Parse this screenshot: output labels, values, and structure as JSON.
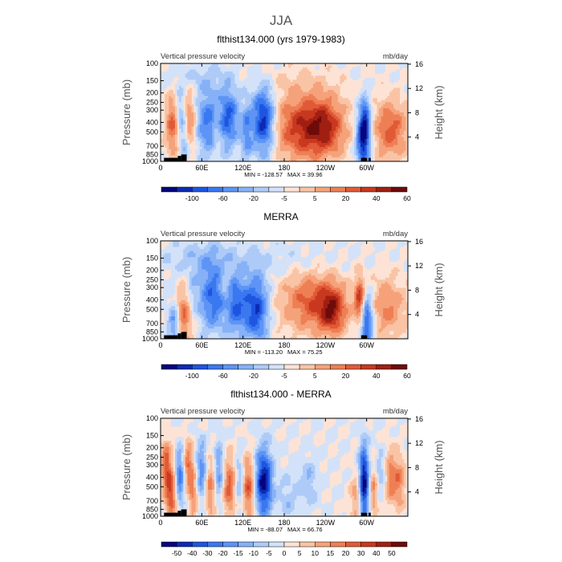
{
  "figure_title": "JJA",
  "chart_data": [
    {
      "type": "heatmap",
      "title": "flthist134.000 (yrs 1979-1983)",
      "left_string": "Vertical pressure velocity",
      "right_string": "mb/day",
      "ylabel": "Pressure (mb)",
      "ylabel_right": "Height (km)",
      "x_ticks": [
        "0",
        "60E",
        "120E",
        "180",
        "120W",
        "60W"
      ],
      "x_tick_values": [
        0,
        60,
        120,
        180,
        240,
        300
      ],
      "xlim": [
        0,
        360
      ],
      "y_ticks": [
        "100",
        "150",
        "200",
        "250",
        "300",
        "400",
        "500",
        "700",
        "850",
        "1000"
      ],
      "y_tick_values": [
        100,
        150,
        200,
        250,
        300,
        400,
        500,
        700,
        850,
        1000
      ],
      "ylim": [
        1000,
        100
      ],
      "y_scale": "log",
      "height_ticks": [
        "4",
        "8",
        "12",
        "16"
      ],
      "height_tick_values": [
        4,
        8,
        12,
        16
      ],
      "min_label": "MIN = -128.57",
      "max_label": "MAX =  39.96",
      "colorbar_labels": [
        "-100",
        "-60",
        "-20",
        "-5",
        "5",
        "20",
        "40",
        "60"
      ],
      "colorbar_colors": [
        "#06057d",
        "#0c2bb3",
        "#1e55e0",
        "#3a78f0",
        "#5d94f5",
        "#86b1f7",
        "#aecbf8",
        "#d3e2f9",
        "#fde3d5",
        "#f9c4a5",
        "#f5a27a",
        "#ee7f55",
        "#e15a37",
        "#c8381f",
        "#a01f13",
        "#6e0b0b"
      ],
      "features": [
        {
          "lon": 18,
          "p": 420,
          "w": 8,
          "h": 0.5,
          "v": 0.55
        },
        {
          "lon": 28,
          "p": 320,
          "w": 5,
          "h": 0.35,
          "v": -0.4
        },
        {
          "lon": 35,
          "p": 600,
          "w": 6,
          "h": 0.45,
          "v": -0.4
        },
        {
          "lon": 42,
          "p": 400,
          "w": 7,
          "h": 0.5,
          "v": 0.55
        },
        {
          "lon": 70,
          "p": 400,
          "w": 14,
          "h": 0.55,
          "v": -0.55
        },
        {
          "lon": 100,
          "p": 350,
          "w": 10,
          "h": 0.5,
          "v": -0.6
        },
        {
          "lon": 82,
          "p": 500,
          "w": 5,
          "h": 0.4,
          "v": 0.25
        },
        {
          "lon": 150,
          "p": 380,
          "w": 12,
          "h": 0.55,
          "v": -0.9
        },
        {
          "lon": 125,
          "p": 500,
          "w": 6,
          "h": 0.5,
          "v": -0.4
        },
        {
          "lon": 200,
          "p": 450,
          "w": 28,
          "h": 0.55,
          "v": 0.6
        },
        {
          "lon": 240,
          "p": 450,
          "w": 22,
          "h": 0.5,
          "v": 0.65
        },
        {
          "lon": 295,
          "p": 600,
          "w": 7,
          "h": 0.45,
          "v": -0.95
        },
        {
          "lon": 298,
          "p": 350,
          "w": 5,
          "h": 0.35,
          "v": -0.5
        },
        {
          "lon": 335,
          "p": 480,
          "w": 18,
          "h": 0.5,
          "v": 0.55
        },
        {
          "lon": 180,
          "p": 150,
          "w": 60,
          "h": 0.3,
          "v": 0.1
        },
        {
          "lon": 60,
          "p": 140,
          "w": 40,
          "h": 0.25,
          "v": -0.15
        }
      ],
      "topography": [
        [
          5,
          25,
          920
        ],
        [
          25,
          30,
          880
        ],
        [
          30,
          38,
          850
        ],
        [
          292,
          300,
          920
        ],
        [
          303,
          306,
          920
        ]
      ]
    },
    {
      "type": "heatmap",
      "title": "MERRA",
      "left_string": "Vertical pressure velocity",
      "right_string": "mb/day",
      "ylabel": "Pressure (mb)",
      "ylabel_right": "Height (km)",
      "x_ticks": [
        "0",
        "60E",
        "120E",
        "180",
        "120W",
        "60W"
      ],
      "x_tick_values": [
        0,
        60,
        120,
        180,
        240,
        300
      ],
      "xlim": [
        0,
        360
      ],
      "y_ticks": [
        "100",
        "150",
        "200",
        "250",
        "300",
        "400",
        "500",
        "700",
        "850",
        "1000"
      ],
      "y_tick_values": [
        100,
        150,
        200,
        250,
        300,
        400,
        500,
        700,
        850,
        1000
      ],
      "ylim": [
        1000,
        100
      ],
      "y_scale": "log",
      "height_ticks": [
        "4",
        "8",
        "12",
        "16"
      ],
      "height_tick_values": [
        4,
        8,
        12,
        16
      ],
      "min_label": "MIN = -113.20",
      "max_label": "MAX =  75.25",
      "colorbar_labels": [
        "-100",
        "-60",
        "-20",
        "-5",
        "5",
        "20",
        "40",
        "60"
      ],
      "colorbar_colors": [
        "#06057d",
        "#0c2bb3",
        "#1e55e0",
        "#3a78f0",
        "#5d94f5",
        "#86b1f7",
        "#aecbf8",
        "#d3e2f9",
        "#fde3d5",
        "#f9c4a5",
        "#f5a27a",
        "#ee7f55",
        "#e15a37",
        "#c8381f",
        "#a01f13",
        "#6e0b0b"
      ],
      "features": [
        {
          "lon": 20,
          "p": 700,
          "w": 6,
          "h": 0.4,
          "v": -0.5
        },
        {
          "lon": 35,
          "p": 550,
          "w": 10,
          "h": 0.45,
          "v": 0.55
        },
        {
          "lon": 45,
          "p": 400,
          "w": 6,
          "h": 0.4,
          "v": -0.3
        },
        {
          "lon": 75,
          "p": 380,
          "w": 14,
          "h": 0.55,
          "v": -0.6
        },
        {
          "lon": 110,
          "p": 450,
          "w": 12,
          "h": 0.5,
          "v": -0.6
        },
        {
          "lon": 140,
          "p": 500,
          "w": 12,
          "h": 0.55,
          "v": -0.75
        },
        {
          "lon": 95,
          "p": 300,
          "w": 5,
          "h": 0.4,
          "v": 0.2
        },
        {
          "lon": 220,
          "p": 420,
          "w": 32,
          "h": 0.5,
          "v": 0.55
        },
        {
          "lon": 250,
          "p": 520,
          "w": 14,
          "h": 0.4,
          "v": 0.6
        },
        {
          "lon": 290,
          "p": 400,
          "w": 5,
          "h": 0.4,
          "v": 0.7
        },
        {
          "lon": 300,
          "p": 650,
          "w": 7,
          "h": 0.45,
          "v": -0.8
        },
        {
          "lon": 330,
          "p": 480,
          "w": 20,
          "h": 0.5,
          "v": 0.4
        },
        {
          "lon": 170,
          "p": 160,
          "w": 60,
          "h": 0.3,
          "v": -0.1
        },
        {
          "lon": 60,
          "p": 150,
          "w": 40,
          "h": 0.3,
          "v": -0.2
        }
      ],
      "topography": [
        [
          5,
          25,
          920
        ],
        [
          25,
          30,
          880
        ],
        [
          30,
          38,
          850
        ],
        [
          292,
          300,
          920
        ]
      ]
    },
    {
      "type": "heatmap",
      "title": "flthist134.000 - MERRA",
      "left_string": "Vertical pressure velocity",
      "right_string": "mb/day",
      "ylabel": "Pressure (mb)",
      "ylabel_right": "Height (km)",
      "x_ticks": [
        "0",
        "60E",
        "120E",
        "180",
        "120W",
        "60W"
      ],
      "x_tick_values": [
        0,
        60,
        120,
        180,
        240,
        300
      ],
      "xlim": [
        0,
        360
      ],
      "y_ticks": [
        "100",
        "150",
        "200",
        "250",
        "300",
        "400",
        "500",
        "700",
        "850",
        "1000"
      ],
      "y_tick_values": [
        100,
        150,
        200,
        250,
        300,
        400,
        500,
        700,
        850,
        1000
      ],
      "ylim": [
        1000,
        100
      ],
      "y_scale": "log",
      "height_ticks": [
        "4",
        "8",
        "12",
        "16"
      ],
      "height_tick_values": [
        4,
        8,
        12,
        16
      ],
      "min_label": "MIN = -88.07",
      "max_label": "MAX =  66.76",
      "colorbar_labels": [
        "-50",
        "-40",
        "-30",
        "-20",
        "-15",
        "-10",
        "-5",
        "0",
        "5",
        "10",
        "15",
        "20",
        "30",
        "40",
        "50"
      ],
      "colorbar_colors": [
        "#06057d",
        "#0c2bb3",
        "#1e55e0",
        "#3a78f0",
        "#5d94f5",
        "#86b1f7",
        "#aecbf8",
        "#d3e2f9",
        "#fde3d5",
        "#f9c4a5",
        "#f5a27a",
        "#ee7f55",
        "#e15a37",
        "#c8381f",
        "#a01f13",
        "#6e0b0b"
      ],
      "features": [
        {
          "lon": 8,
          "p": 300,
          "w": 6,
          "h": 0.4,
          "v": 0.55
        },
        {
          "lon": 15,
          "p": 600,
          "w": 6,
          "h": 0.4,
          "v": 0.6
        },
        {
          "lon": 28,
          "p": 400,
          "w": 5,
          "h": 0.45,
          "v": -0.6
        },
        {
          "lon": 40,
          "p": 300,
          "w": 5,
          "h": 0.4,
          "v": 0.5
        },
        {
          "lon": 48,
          "p": 600,
          "w": 5,
          "h": 0.45,
          "v": 0.4
        },
        {
          "lon": 60,
          "p": 350,
          "w": 6,
          "h": 0.5,
          "v": -0.5
        },
        {
          "lon": 72,
          "p": 500,
          "w": 6,
          "h": 0.5,
          "v": 0.45
        },
        {
          "lon": 85,
          "p": 350,
          "w": 5,
          "h": 0.5,
          "v": -0.45
        },
        {
          "lon": 100,
          "p": 500,
          "w": 7,
          "h": 0.5,
          "v": 0.55
        },
        {
          "lon": 115,
          "p": 450,
          "w": 5,
          "h": 0.5,
          "v": -0.35
        },
        {
          "lon": 128,
          "p": 500,
          "w": 7,
          "h": 0.5,
          "v": 0.6
        },
        {
          "lon": 150,
          "p": 450,
          "w": 9,
          "h": 0.55,
          "v": -0.95
        },
        {
          "lon": 185,
          "p": 650,
          "w": 10,
          "h": 0.4,
          "v": -0.2
        },
        {
          "lon": 215,
          "p": 450,
          "w": 10,
          "h": 0.4,
          "v": -0.25
        },
        {
          "lon": 285,
          "p": 650,
          "w": 6,
          "h": 0.4,
          "v": 0.35
        },
        {
          "lon": 296,
          "p": 450,
          "w": 5,
          "h": 0.6,
          "v": -1.0
        },
        {
          "lon": 310,
          "p": 550,
          "w": 4,
          "h": 0.4,
          "v": 0.4
        },
        {
          "lon": 335,
          "p": 400,
          "w": 6,
          "h": 0.45,
          "v": 0.45
        },
        {
          "lon": 348,
          "p": 450,
          "w": 6,
          "h": 0.45,
          "v": 0.4
        },
        {
          "lon": 320,
          "p": 350,
          "w": 5,
          "h": 0.35,
          "v": -0.25
        }
      ],
      "topography": [
        [
          5,
          25,
          920
        ],
        [
          25,
          30,
          880
        ],
        [
          30,
          38,
          850
        ],
        [
          292,
          300,
          920
        ],
        [
          303,
          306,
          920
        ]
      ]
    }
  ]
}
